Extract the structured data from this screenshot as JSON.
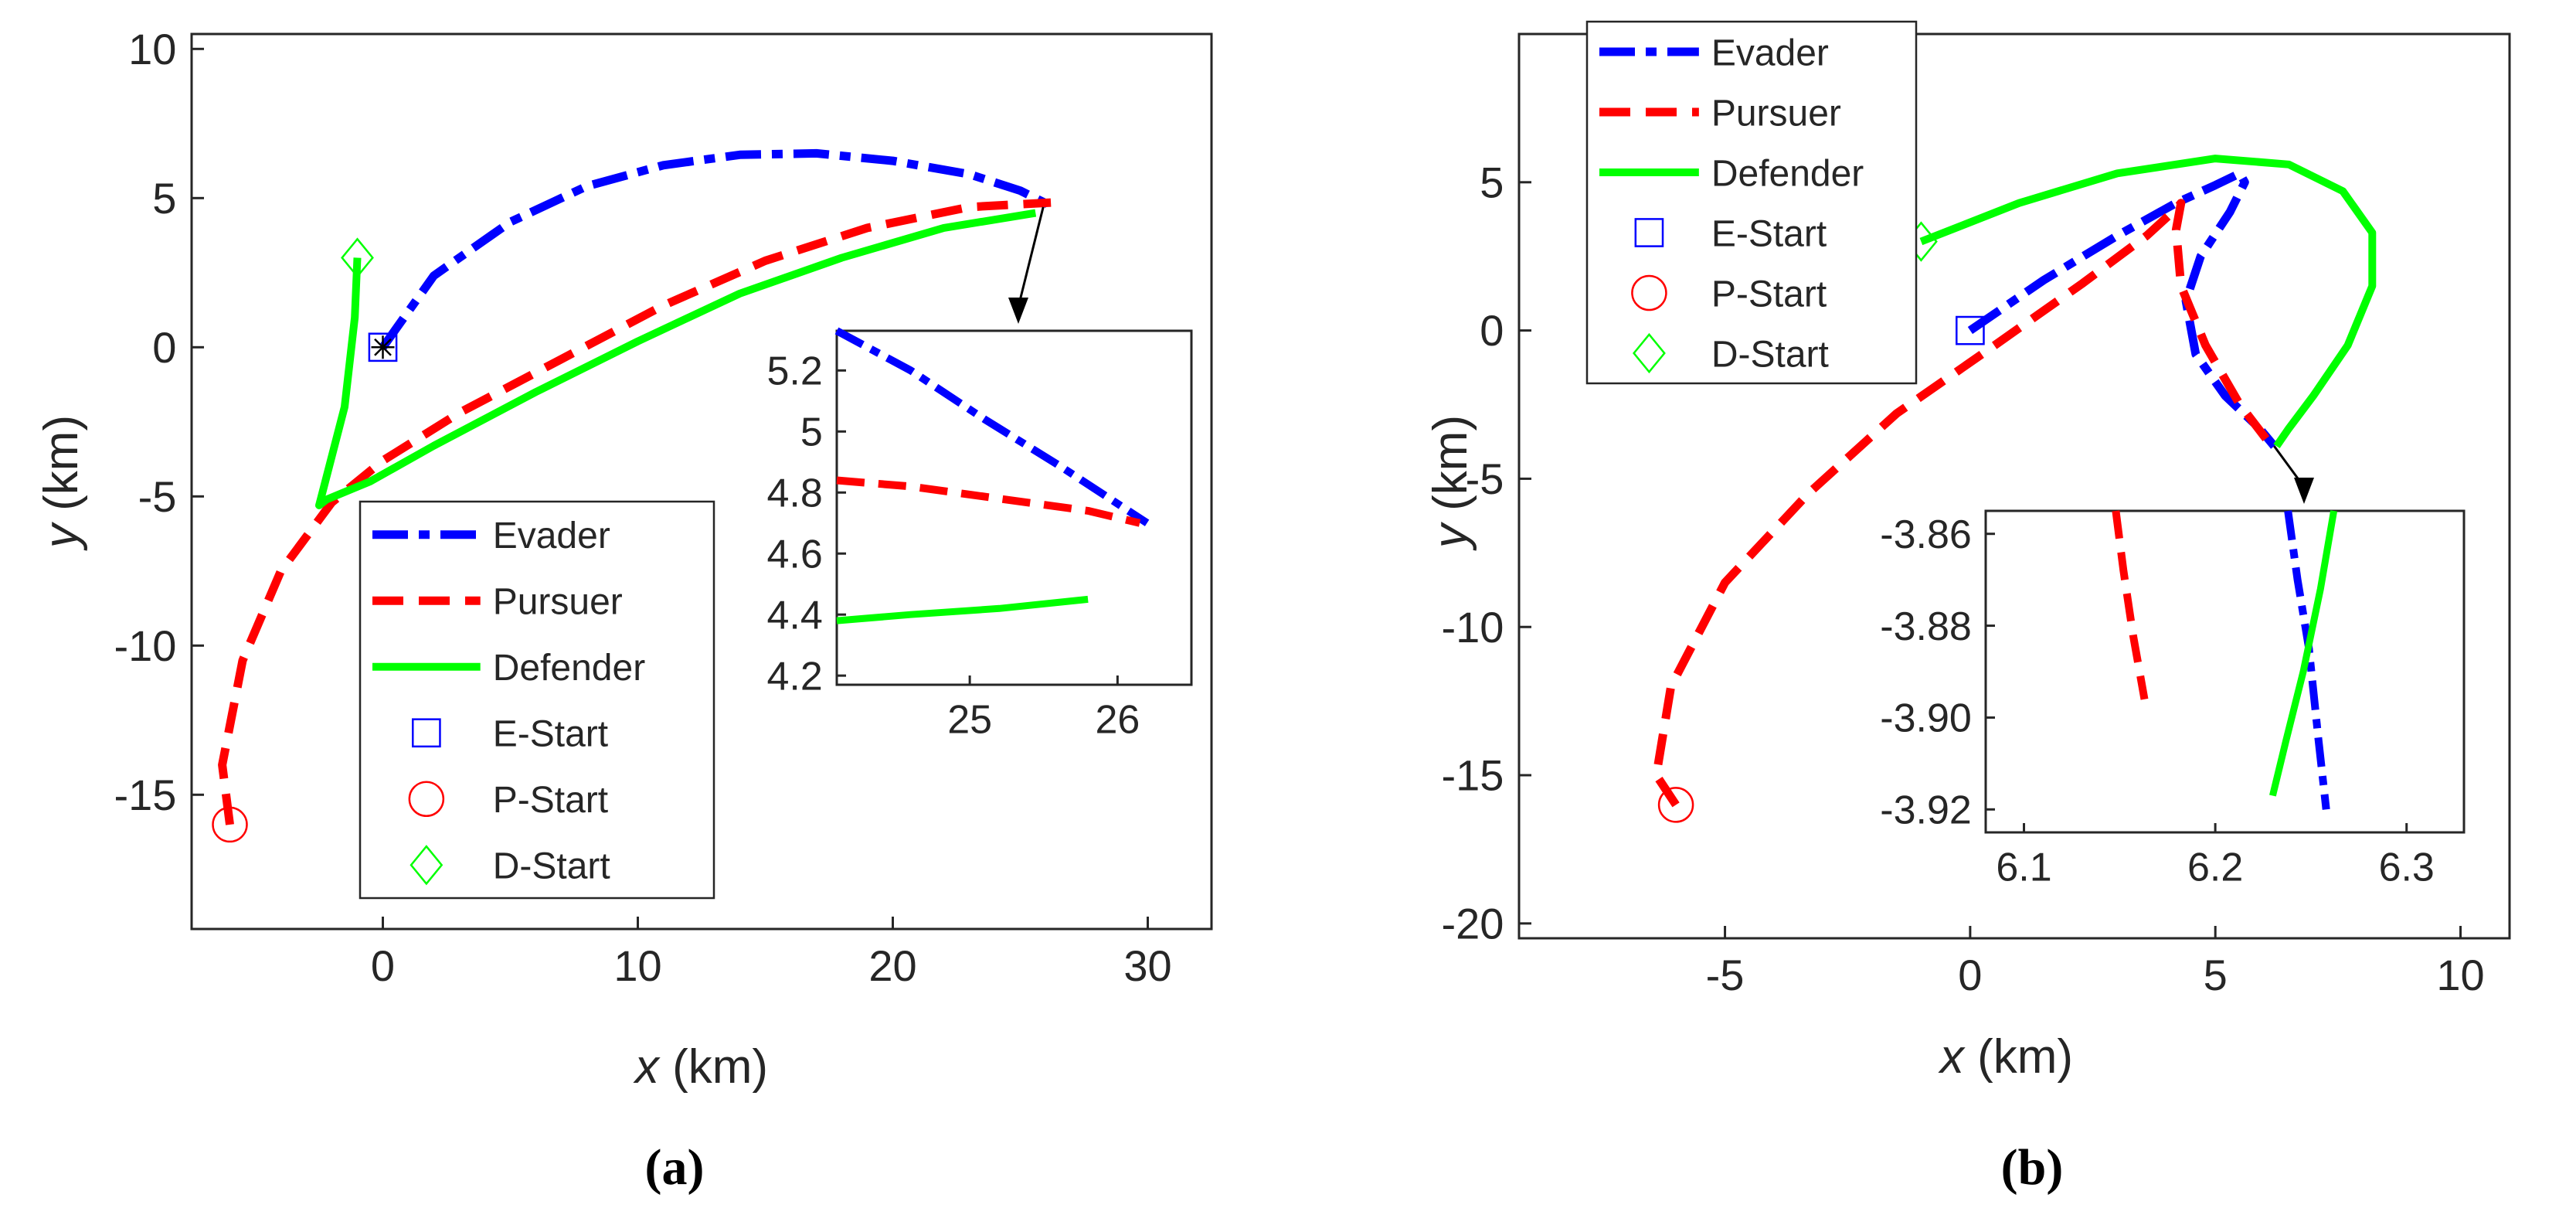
{
  "captions": [
    "(a)",
    "(b)"
  ],
  "colors": {
    "evader": "#0000ff",
    "pursuer": "#ff0000",
    "defender": "#00ff00",
    "axis": "#262626"
  },
  "chart_data": [
    {
      "id": "a",
      "type": "line",
      "xlabel_var": "x",
      "xlabel_unit": " (km)",
      "ylabel_var": "y",
      "ylabel_unit": " (km)",
      "xlim": [
        -7.5,
        32.5
      ],
      "ylim": [
        -19.5,
        10.5
      ],
      "xticks": [
        0,
        10,
        20,
        30
      ],
      "yticks": [
        10,
        5,
        0,
        -5,
        -10,
        -15
      ],
      "legend_position": "lower-right",
      "legend": [
        "Evader",
        "Pursuer",
        "Defender",
        "E-Start",
        "P-Start",
        "D-Start"
      ],
      "series": [
        {
          "name": "Evader",
          "style": "dashdot",
          "x": [
            0,
            2,
            5,
            8,
            11,
            14,
            17,
            20,
            23,
            25,
            26.3
          ],
          "y": [
            0,
            2.4,
            4.2,
            5.4,
            6.1,
            6.45,
            6.5,
            6.25,
            5.8,
            5.25,
            4.7
          ]
        },
        {
          "name": "Pursuer",
          "style": "dashed",
          "x": [
            -6,
            -6.3,
            -5.5,
            -4,
            -2,
            0,
            3,
            7,
            11,
            15,
            19,
            23,
            26.2
          ],
          "y": [
            -16,
            -14,
            -10.5,
            -7.5,
            -5.2,
            -3.8,
            -2.2,
            -0.4,
            1.4,
            2.9,
            4,
            4.7,
            4.85
          ]
        },
        {
          "name": "Defender",
          "style": "solid",
          "x": [
            -1,
            -1.1,
            -1.5,
            -2.5,
            -2.2,
            -0.5,
            2,
            6,
            10,
            14,
            18,
            22,
            25.6
          ],
          "y": [
            3,
            1,
            -2,
            -5.3,
            -5.1,
            -4.5,
            -3.3,
            -1.5,
            0.2,
            1.8,
            3,
            4,
            4.5
          ]
        }
      ],
      "markers": [
        {
          "name": "E-Start",
          "shape": "square",
          "x": 0,
          "y": 0
        },
        {
          "name": "P-Start",
          "shape": "circle",
          "x": -6,
          "y": -16
        },
        {
          "name": "D-Start",
          "shape": "diamond",
          "x": -1,
          "y": 3
        }
      ],
      "end_marker": {
        "shape": "star",
        "x": 0,
        "y": 0
      },
      "inset": {
        "xlim": [
          24.1,
          26.5
        ],
        "ylim": [
          4.17,
          5.33
        ],
        "xticks": [
          25,
          26
        ],
        "yticks": [
          5.2,
          5,
          4.8,
          4.6,
          4.4,
          4.2
        ],
        "series": [
          {
            "name": "Evader",
            "x": [
              24.1,
              24.6,
              25.1,
              25.6,
              26.2
            ],
            "y": [
              5.33,
              5.2,
              5.04,
              4.89,
              4.7
            ]
          },
          {
            "name": "Pursuer",
            "x": [
              24.1,
              24.6,
              25.2,
              25.8,
              26.15
            ],
            "y": [
              4.84,
              4.82,
              4.78,
              4.74,
              4.7
            ]
          },
          {
            "name": "Defender",
            "x": [
              24.1,
              24.6,
              25.2,
              25.8
            ],
            "y": [
              4.38,
              4.4,
              4.42,
              4.45
            ]
          }
        ],
        "arrow_from": [
          25.9,
          4.7
        ]
      }
    },
    {
      "id": "b",
      "type": "line",
      "xlabel_var": "x",
      "xlabel_unit": " (km)",
      "ylabel_var": "y",
      "ylabel_unit": " (km)",
      "xlim": [
        -9.2,
        11
      ],
      "ylim": [
        -20.5,
        10
      ],
      "xticks": [
        -5,
        0,
        5,
        10
      ],
      "yticks": [
        5,
        0,
        -5,
        -10,
        -15,
        -20
      ],
      "legend_position": "top-left",
      "legend": [
        "Evader",
        "Pursuer",
        "Defender",
        "E-Start",
        "P-Start",
        "D-Start"
      ],
      "series": [
        {
          "name": "Evader",
          "style": "dashdot",
          "x": [
            0,
            1.5,
            3,
            4.2,
            5,
            5.5,
            5.6,
            5.3,
            4.7,
            4.4,
            4.6,
            5.2,
            5.9,
            6.2
          ],
          "y": [
            0,
            1.7,
            3.2,
            4.3,
            4.9,
            5.3,
            5,
            4,
            2.5,
            1,
            -0.8,
            -2.2,
            -3.3,
            -3.9
          ]
        },
        {
          "name": "Pursuer",
          "style": "dashed",
          "x": [
            -6,
            -6.4,
            -6.1,
            -5,
            -3.3,
            -1.5,
            0.5,
            2.3,
            3.6,
            4.2,
            4.3,
            4.2,
            4.3,
            4.8,
            5.5,
            6.15
          ],
          "y": [
            -16,
            -15,
            -12,
            -8.5,
            -5.5,
            -2.8,
            -0.5,
            1.6,
            3.2,
            4.1,
            4.3,
            3.4,
            1.5,
            -0.5,
            -2.5,
            -3.9
          ]
        },
        {
          "name": "Defender",
          "style": "solid",
          "x": [
            -1,
            1,
            3,
            5,
            6.5,
            7.6,
            8.2,
            8.2,
            7.7,
            7,
            6.5,
            6.25
          ],
          "y": [
            3,
            4.3,
            5.3,
            5.8,
            5.6,
            4.7,
            3.3,
            1.5,
            -0.5,
            -2.2,
            -3.3,
            -3.9
          ]
        }
      ],
      "markers": [
        {
          "name": "E-Start",
          "shape": "square",
          "x": 0,
          "y": 0
        },
        {
          "name": "P-Start",
          "shape": "circle",
          "x": -6,
          "y": -16
        },
        {
          "name": "D-Start",
          "shape": "diamond",
          "x": -1,
          "y": 3
        }
      ],
      "inset": {
        "xlim": [
          6.08,
          6.33
        ],
        "ylim": [
          -3.925,
          -3.855
        ],
        "xticks": [
          6.1,
          6.2,
          6.3
        ],
        "yticks": [
          -3.86,
          -3.88,
          -3.9,
          -3.92
        ],
        "series": [
          {
            "name": "Evader",
            "x": [
              6.238,
              6.243,
              6.249,
              6.254,
              6.258
            ],
            "y": [
              -3.855,
              -3.87,
              -3.885,
              -3.905,
              -3.92
            ]
          },
          {
            "name": "Pursuer",
            "x": [
              6.148,
              6.152,
              6.157,
              6.163
            ],
            "y": [
              -3.855,
              -3.868,
              -3.882,
              -3.896
            ]
          },
          {
            "name": "Defender",
            "x": [
              6.262,
              6.255,
              6.246,
              6.237,
              6.23
            ],
            "y": [
              -3.855,
              -3.872,
              -3.89,
              -3.905,
              -3.917
            ]
          }
        ],
        "arrow_from": [
          6.2,
          -3.9
        ]
      }
    }
  ]
}
